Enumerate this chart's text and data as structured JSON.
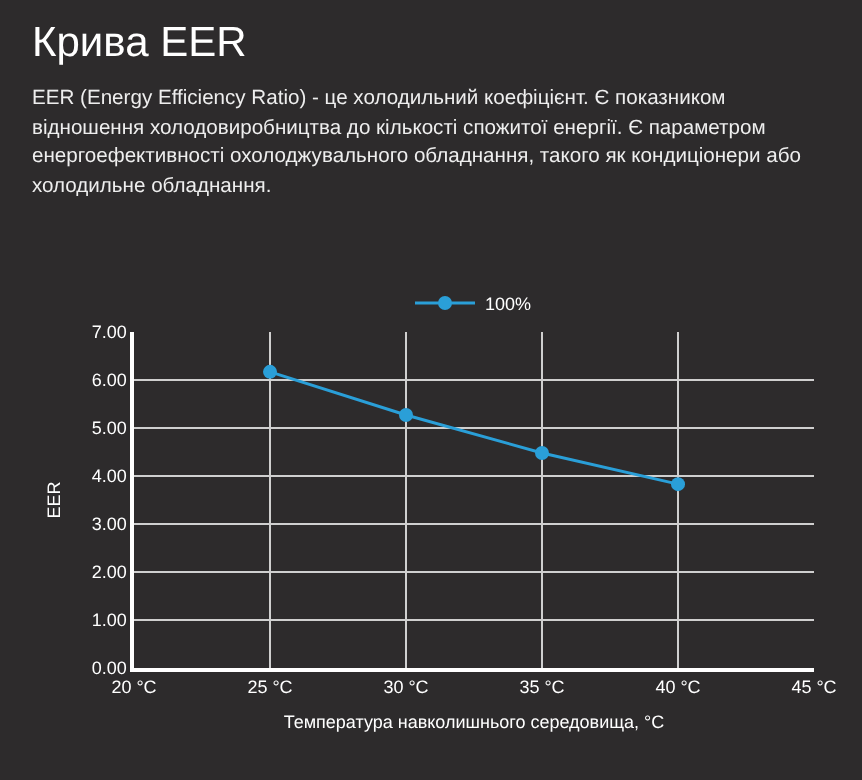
{
  "chart_data": {
    "type": "line",
    "title": "Крива EER",
    "subtitle": "EER (Energy Efficiency Ratio) - це холодильний коефіцієнт. Є показником відношення холодовиробництва до кількості спожитої енергії. Є параметром енергоефективності охолоджувального обладнання, такого як кондиціонери або холодильне обладнання.",
    "xlabel": "Температура навколишнього середовища, °C",
    "ylabel": "EER",
    "x": [
      25,
      30,
      35,
      40
    ],
    "series": [
      {
        "name": "100%",
        "color": "#2a9fd8",
        "values": [
          6.17,
          5.27,
          4.48,
          3.83
        ]
      }
    ],
    "xlim": [
      20,
      45
    ],
    "xticks": [
      {
        "value": 20,
        "label": "20 °C"
      },
      {
        "value": 25,
        "label": "25 °C"
      },
      {
        "value": 30,
        "label": "30 °C"
      },
      {
        "value": 35,
        "label": "35 °C"
      },
      {
        "value": 40,
        "label": "40 °C"
      },
      {
        "value": 45,
        "label": "45 °C"
      }
    ],
    "ylim": [
      0,
      7
    ],
    "yticks": [
      {
        "value": 0,
        "label": "0.00"
      },
      {
        "value": 1,
        "label": "1.00"
      },
      {
        "value": 2,
        "label": "2.00"
      },
      {
        "value": 3,
        "label": "3.00"
      },
      {
        "value": 4,
        "label": "4.00"
      },
      {
        "value": 5,
        "label": "5.00"
      },
      {
        "value": 6,
        "label": "6.00"
      },
      {
        "value": 7,
        "label": "7.00"
      }
    ],
    "grid": true,
    "legend": "top",
    "marker": "circle",
    "line_style": "solid"
  }
}
